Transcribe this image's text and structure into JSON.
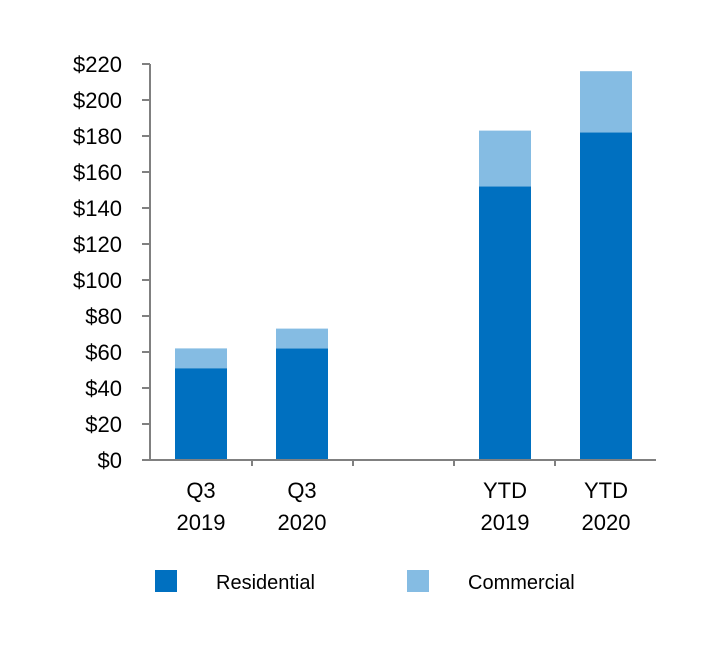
{
  "chart_data": {
    "type": "bar",
    "stacked": true,
    "categories": [
      [
        "Q3",
        "2019"
      ],
      [
        "Q3",
        "2020"
      ],
      [
        "YTD",
        "2019"
      ],
      [
        "YTD",
        "2020"
      ]
    ],
    "series": [
      {
        "name": "Residential",
        "color": "#0070c0",
        "values": [
          51,
          62,
          152,
          182
        ]
      },
      {
        "name": "Commercial",
        "color": "#85bce3",
        "values": [
          11,
          11,
          31,
          34
        ]
      }
    ],
    "ylim": [
      0,
      220
    ],
    "yticks": [
      0,
      20,
      40,
      60,
      80,
      100,
      120,
      140,
      160,
      180,
      200,
      220
    ],
    "ytick_labels": [
      "$0",
      "$20",
      "$40",
      "$60",
      "$80",
      "$100",
      "$120",
      "$140",
      "$160",
      "$180",
      "$200",
      "$220"
    ],
    "title": "",
    "xlabel": "",
    "ylabel": "",
    "legend_position": "bottom",
    "grid": false
  }
}
